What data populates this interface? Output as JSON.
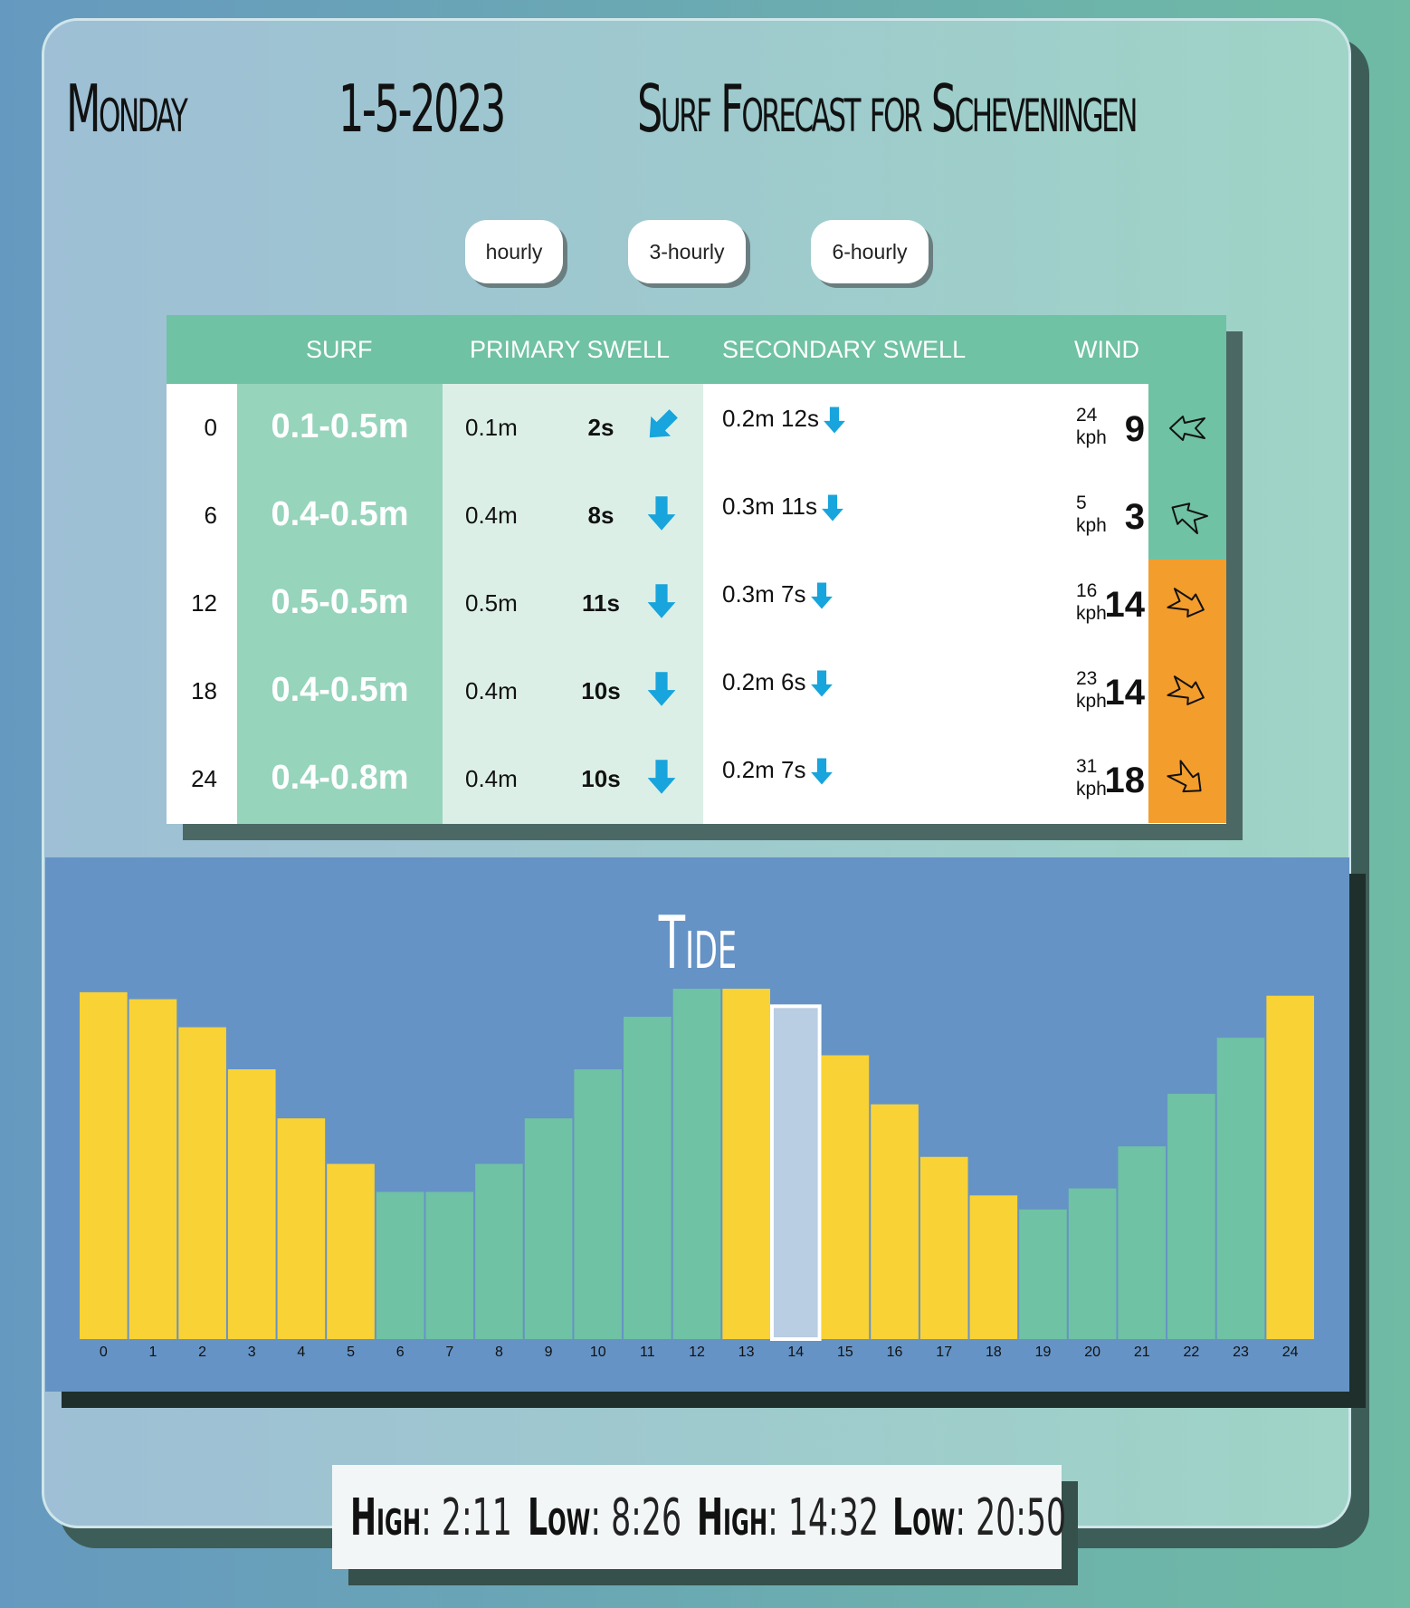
{
  "header": {
    "day": "Monday",
    "date": "1-5-2023",
    "title": "Surf Forecast for Scheveningen"
  },
  "view_buttons": [
    "hourly",
    "3-hourly",
    "6-hourly"
  ],
  "table": {
    "headers": {
      "surf": "SURF",
      "primary": "PRIMARY SWELL",
      "secondary": "SECONDARY SWELL",
      "wind": "WIND"
    },
    "rows": [
      {
        "hour": "0",
        "surf": "0.1-0.5m",
        "primary_height": "0.1m",
        "primary_period": "2s",
        "primary_arrow": "arrow-down-left-icon",
        "secondary": "0.2m 12s",
        "wind": "9",
        "gust": "24",
        "unit": "kph",
        "wind_color": "#6fc2a3"
      },
      {
        "hour": "6",
        "surf": "0.4-0.5m",
        "primary_height": "0.4m",
        "primary_period": "8s",
        "primary_arrow": "arrow-down-icon",
        "secondary": "0.3m 11s",
        "wind": "3",
        "gust": "5",
        "unit": "kph",
        "wind_color": "#6fc2a3"
      },
      {
        "hour": "12",
        "surf": "0.5-0.5m",
        "primary_height": "0.5m",
        "primary_period": "11s",
        "primary_arrow": "arrow-down-icon",
        "secondary": "0.3m 7s",
        "wind": "14",
        "gust": "16",
        "unit": "kph",
        "wind_color": "#f39d2c"
      },
      {
        "hour": "18",
        "surf": "0.4-0.5m",
        "primary_height": "0.4m",
        "primary_period": "10s",
        "primary_arrow": "arrow-down-icon",
        "secondary": "0.2m 6s",
        "wind": "14",
        "gust": "23",
        "unit": "kph",
        "wind_color": "#f39d2c"
      },
      {
        "hour": "24",
        "surf": "0.4-0.8m",
        "primary_height": "0.4m",
        "primary_period": "10s",
        "primary_arrow": "arrow-down-icon",
        "secondary": "0.2m 7s",
        "wind": "18",
        "gust": "31",
        "unit": "kph",
        "wind_color": "#f39d2c"
      }
    ]
  },
  "tide": {
    "title": "Tide",
    "times": [
      {
        "label": "High",
        "time": "2:11"
      },
      {
        "label": "Low",
        "time": "8:26"
      },
      {
        "label": "High",
        "time": "14:32"
      },
      {
        "label": "Low",
        "time": "20:50"
      }
    ]
  },
  "chart_data": {
    "type": "bar",
    "title": "Tide",
    "categories": [
      "0",
      "1",
      "2",
      "3",
      "4",
      "5",
      "6",
      "7",
      "8",
      "9",
      "10",
      "11",
      "12",
      "13",
      "14",
      "15",
      "16",
      "17",
      "18",
      "19",
      "20",
      "21",
      "22",
      "23",
      "24"
    ],
    "values": [
      0.99,
      0.97,
      0.89,
      0.77,
      0.63,
      0.5,
      0.42,
      0.42,
      0.5,
      0.63,
      0.77,
      0.92,
      1.0,
      1.0,
      0.95,
      0.81,
      0.67,
      0.52,
      0.41,
      0.37,
      0.43,
      0.55,
      0.7,
      0.86,
      0.98
    ],
    "bar_colors": [
      "#f9d236",
      "#f9d236",
      "#f9d236",
      "#f9d236",
      "#f9d236",
      "#f9d236",
      "#6fc2a3",
      "#6fc2a3",
      "#6fc2a3",
      "#6fc2a3",
      "#6fc2a3",
      "#6fc2a3",
      "#6fc2a3",
      "#f9d236",
      "#b9cde3",
      "#f9d236",
      "#f9d236",
      "#f9d236",
      "#f9d236",
      "#6fc2a3",
      "#6fc2a3",
      "#6fc2a3",
      "#6fc2a3",
      "#6fc2a3",
      "#f9d236"
    ],
    "highlighted_index": 14,
    "ylim": [
      0,
      1
    ],
    "grid": false,
    "legend": "none"
  }
}
